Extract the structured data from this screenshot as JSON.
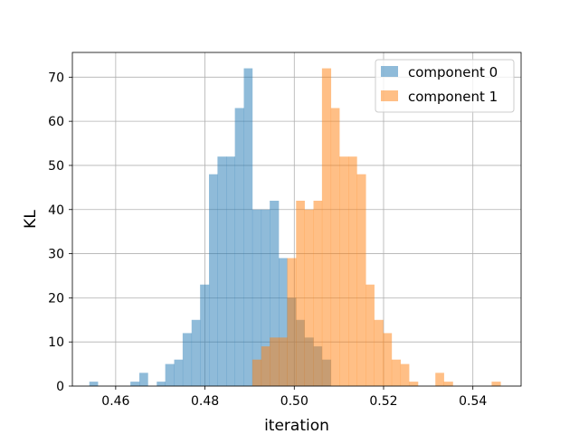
{
  "chart_data": {
    "type": "bar",
    "subtype": "overlapping-histogram",
    "title": "",
    "xlabel": "iteration",
    "ylabel": "KL",
    "xlim": [
      0.4503,
      0.5508
    ],
    "ylim": [
      0,
      75.6
    ],
    "xticks": [
      0.46,
      0.48,
      0.5,
      0.52,
      0.54
    ],
    "xtick_labels": [
      "0.46",
      "0.48",
      "0.50",
      "0.52",
      "0.54"
    ],
    "yticks": [
      0,
      10,
      20,
      30,
      40,
      50,
      60,
      70
    ],
    "ytick_labels": [
      "0",
      "10",
      "20",
      "30",
      "40",
      "50",
      "60",
      "70"
    ],
    "grid": true,
    "legend_position": "top-right",
    "series": [
      {
        "name": "component 0",
        "color": "#1f77b4",
        "opacity": 0.5,
        "bins": [
          [
            0.4541,
            0.456,
            1
          ],
          [
            0.4633,
            0.4653,
            1
          ],
          [
            0.4653,
            0.4672,
            3
          ],
          [
            0.4692,
            0.4711,
            1
          ],
          [
            0.4711,
            0.4731,
            5
          ],
          [
            0.4731,
            0.475,
            6
          ],
          [
            0.475,
            0.477,
            12
          ],
          [
            0.477,
            0.4789,
            15
          ],
          [
            0.4789,
            0.4809,
            23
          ],
          [
            0.4809,
            0.4828,
            48
          ],
          [
            0.4828,
            0.4848,
            52
          ],
          [
            0.4848,
            0.4867,
            52
          ],
          [
            0.4867,
            0.4887,
            63
          ],
          [
            0.4887,
            0.4906,
            72
          ],
          [
            0.4906,
            0.4926,
            40
          ],
          [
            0.4926,
            0.4945,
            40
          ],
          [
            0.4945,
            0.4965,
            42
          ],
          [
            0.4965,
            0.4984,
            29
          ],
          [
            0.4984,
            0.5004,
            20
          ],
          [
            0.5004,
            0.5023,
            15
          ],
          [
            0.5023,
            0.5043,
            11
          ],
          [
            0.5043,
            0.5062,
            9
          ],
          [
            0.5062,
            0.5082,
            6
          ]
        ]
      },
      {
        "name": "component 1",
        "color": "#ff7f0e",
        "opacity": 0.5,
        "bins": [
          [
            0.4906,
            0.4926,
            6
          ],
          [
            0.4926,
            0.4945,
            9
          ],
          [
            0.4945,
            0.4965,
            11
          ],
          [
            0.4965,
            0.4984,
            11
          ],
          [
            0.4984,
            0.5004,
            29
          ],
          [
            0.5004,
            0.5023,
            42
          ],
          [
            0.5023,
            0.5043,
            40
          ],
          [
            0.5043,
            0.5062,
            42
          ],
          [
            0.5062,
            0.5082,
            72
          ],
          [
            0.5082,
            0.5101,
            63
          ],
          [
            0.5101,
            0.5121,
            52
          ],
          [
            0.5121,
            0.514,
            52
          ],
          [
            0.514,
            0.516,
            48
          ],
          [
            0.516,
            0.5179,
            23
          ],
          [
            0.5179,
            0.5199,
            15
          ],
          [
            0.5199,
            0.5218,
            12
          ],
          [
            0.5218,
            0.5238,
            6
          ],
          [
            0.5238,
            0.5257,
            5
          ],
          [
            0.5257,
            0.5277,
            1
          ],
          [
            0.5316,
            0.5335,
            3
          ],
          [
            0.5335,
            0.5355,
            1
          ],
          [
            0.5442,
            0.5462,
            1
          ]
        ]
      }
    ]
  }
}
